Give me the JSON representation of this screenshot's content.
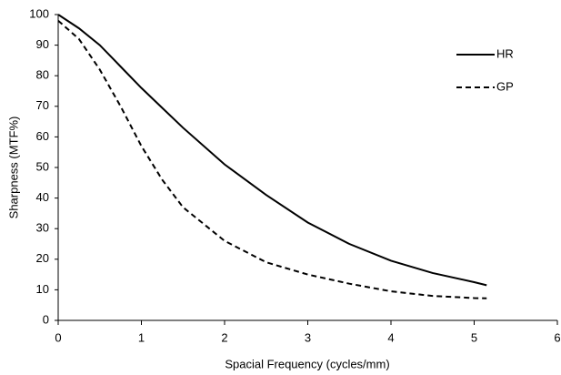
{
  "chart_data": {
    "type": "line",
    "x_label": "Spacial Frequency (cycles/mm)",
    "y_label": "Sharpness (MTF%)",
    "x": [
      0,
      0.25,
      0.5,
      0.75,
      1,
      1.25,
      1.5,
      2,
      2.5,
      3,
      3.5,
      4,
      4.5,
      5,
      5.15
    ],
    "series": [
      {
        "name": "HR",
        "color": "#000000",
        "linestyle": "solid",
        "values": [
          100,
          95.5,
          90,
          83,
          76,
          69.5,
          63,
          51,
          41,
          32,
          25,
          19.5,
          15.5,
          12.5,
          11.5
        ]
      },
      {
        "name": "GP",
        "color": "#000000",
        "linestyle": "dashed",
        "values": [
          98,
          92,
          82,
          70,
          57,
          46,
          37,
          26,
          19,
          15,
          12,
          9.5,
          8,
          7.3,
          7.2
        ]
      }
    ],
    "xlim": [
      0,
      6
    ],
    "xticks": [
      0,
      1,
      2,
      3,
      4,
      5,
      6
    ],
    "ylim": [
      0,
      100
    ],
    "yticks": [
      0,
      10,
      20,
      30,
      40,
      50,
      60,
      70,
      80,
      90,
      100
    ],
    "grid": false,
    "legend": "upper right"
  }
}
